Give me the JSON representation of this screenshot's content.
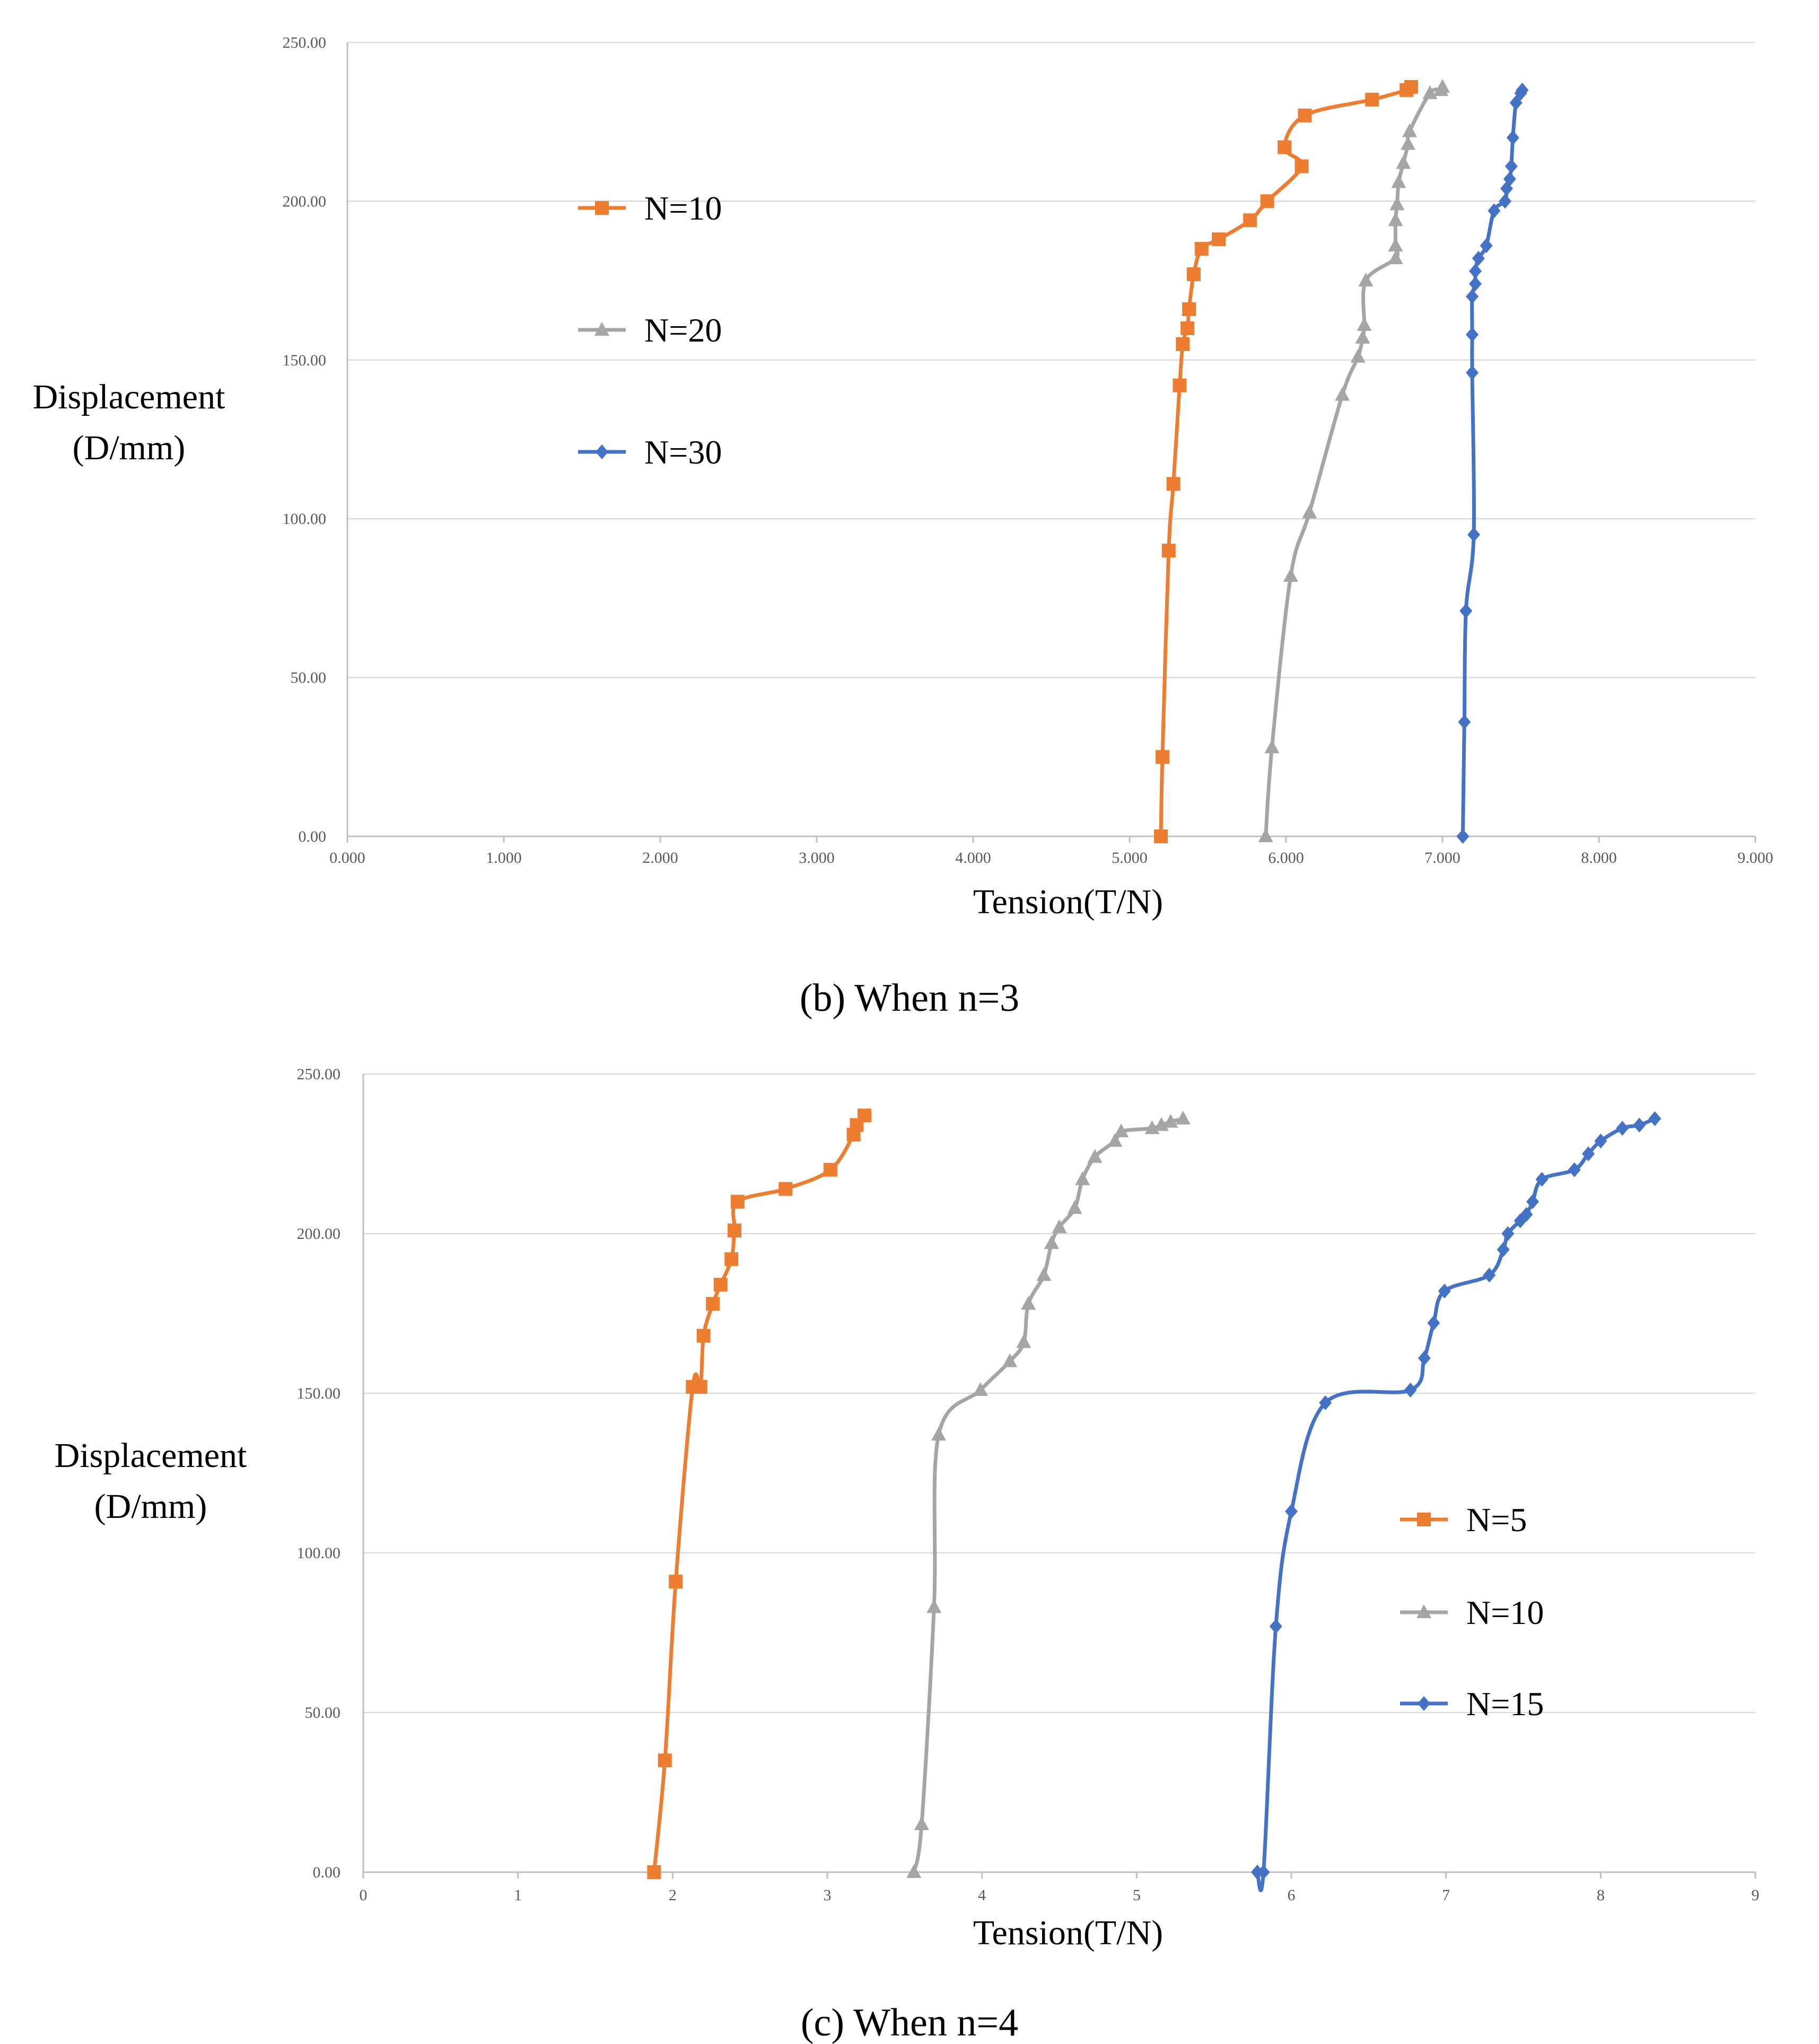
{
  "chart_data": [
    {
      "type": "line",
      "caption": "(b) When n=3",
      "xlabel": "Tension(T/N)",
      "ylabel_lines": [
        "Displacement",
        "(D/mm)"
      ],
      "xlim": [
        0,
        9
      ],
      "ylim": [
        0,
        250
      ],
      "x_ticks": [
        "0.000",
        "1.000",
        "2.000",
        "3.000",
        "4.000",
        "5.000",
        "6.000",
        "7.000",
        "8.000",
        "9.000"
      ],
      "y_ticks": [
        "0.00",
        "50.00",
        "100.00",
        "150.00",
        "200.00",
        "250.00"
      ],
      "grid": "horizontal",
      "legend_position": "top-left",
      "series": [
        {
          "name": "N=10",
          "color": "#ED7D31",
          "marker": "square",
          "points": [
            [
              5.2,
              0
            ],
            [
              5.21,
              25
            ],
            [
              5.25,
              90
            ],
            [
              5.28,
              111
            ],
            [
              5.32,
              142
            ],
            [
              5.34,
              155
            ],
            [
              5.37,
              160
            ],
            [
              5.38,
              166
            ],
            [
              5.41,
              177
            ],
            [
              5.46,
              185
            ],
            [
              5.57,
              188
            ],
            [
              5.77,
              194
            ],
            [
              5.88,
              200
            ],
            [
              6.1,
              211
            ],
            [
              5.99,
              217
            ],
            [
              6.12,
              227
            ],
            [
              6.55,
              232
            ],
            [
              6.77,
              235
            ],
            [
              6.8,
              236
            ]
          ]
        },
        {
          "name": "N=20",
          "color": "#A5A5A5",
          "marker": "triangle",
          "points": [
            [
              5.87,
              0
            ],
            [
              5.91,
              28
            ],
            [
              6.03,
              82
            ],
            [
              6.15,
              102
            ],
            [
              6.36,
              139
            ],
            [
              6.46,
              151
            ],
            [
              6.49,
              157
            ],
            [
              6.5,
              161
            ],
            [
              6.51,
              175
            ],
            [
              6.7,
              182
            ],
            [
              6.7,
              186
            ],
            [
              6.7,
              194
            ],
            [
              6.71,
              199
            ],
            [
              6.72,
              206
            ],
            [
              6.75,
              212
            ],
            [
              6.78,
              218
            ],
            [
              6.79,
              222
            ],
            [
              6.92,
              234
            ],
            [
              6.99,
              235
            ],
            [
              7.0,
              236
            ]
          ]
        },
        {
          "name": "N=30",
          "color": "#4472C4",
          "marker": "diamond",
          "points": [
            [
              7.13,
              0
            ],
            [
              7.14,
              36
            ],
            [
              7.15,
              71
            ],
            [
              7.2,
              95
            ],
            [
              7.19,
              146
            ],
            [
              7.19,
              158
            ],
            [
              7.19,
              170
            ],
            [
              7.21,
              174
            ],
            [
              7.21,
              178
            ],
            [
              7.23,
              182
            ],
            [
              7.28,
              186
            ],
            [
              7.33,
              197
            ],
            [
              7.4,
              200
            ],
            [
              7.41,
              204
            ],
            [
              7.43,
              207
            ],
            [
              7.44,
              211
            ],
            [
              7.45,
              220
            ],
            [
              7.47,
              231
            ],
            [
              7.5,
              234
            ],
            [
              7.51,
              235
            ]
          ]
        }
      ]
    },
    {
      "type": "line",
      "caption": "(c) When n=4",
      "xlabel": "Tension(T/N)",
      "ylabel_lines": [
        "Displacement",
        "(D/mm)"
      ],
      "xlim": [
        0,
        9
      ],
      "ylim": [
        0,
        250
      ],
      "x_ticks": [
        "0",
        "1",
        "2",
        "3",
        "4",
        "5",
        "6",
        "7",
        "8",
        "9"
      ],
      "y_ticks": [
        "0.00",
        "50.00",
        "100.00",
        "150.00",
        "200.00",
        "250.00"
      ],
      "grid": "horizontal",
      "legend_position": "bottom-right",
      "series": [
        {
          "name": "N=5",
          "color": "#ED7D31",
          "marker": "square",
          "points": [
            [
              1.88,
              0
            ],
            [
              1.95,
              35
            ],
            [
              2.02,
              91
            ],
            [
              2.13,
              152
            ],
            [
              2.18,
              152
            ],
            [
              2.2,
              168
            ],
            [
              2.26,
              178
            ],
            [
              2.31,
              184
            ],
            [
              2.38,
              192
            ],
            [
              2.4,
              201
            ],
            [
              2.42,
              210
            ],
            [
              2.73,
              214
            ],
            [
              3.02,
              220
            ],
            [
              3.17,
              231
            ],
            [
              3.19,
              234
            ],
            [
              3.24,
              237
            ]
          ]
        },
        {
          "name": "N=10",
          "color": "#A5A5A5",
          "marker": "triangle",
          "points": [
            [
              3.56,
              0
            ],
            [
              3.61,
              15
            ],
            [
              3.69,
              83
            ],
            [
              3.72,
              137
            ],
            [
              3.99,
              151
            ],
            [
              4.18,
              160
            ],
            [
              4.27,
              166
            ],
            [
              4.3,
              178
            ],
            [
              4.4,
              187
            ],
            [
              4.45,
              197
            ],
            [
              4.5,
              202
            ],
            [
              4.6,
              208
            ],
            [
              4.65,
              217
            ],
            [
              4.73,
              224
            ],
            [
              4.86,
              229
            ],
            [
              4.9,
              232
            ],
            [
              5.1,
              233
            ],
            [
              5.16,
              234
            ],
            [
              5.22,
              235
            ],
            [
              5.3,
              236
            ]
          ]
        },
        {
          "name": "N=15",
          "color": "#4472C4",
          "marker": "diamond",
          "points": [
            [
              5.78,
              0
            ],
            [
              5.82,
              0
            ],
            [
              5.9,
              77
            ],
            [
              6.0,
              113
            ],
            [
              6.22,
              147
            ],
            [
              6.77,
              151
            ],
            [
              6.86,
              161
            ],
            [
              6.92,
              172
            ],
            [
              6.99,
              182
            ],
            [
              7.28,
              187
            ],
            [
              7.37,
              195
            ],
            [
              7.4,
              200
            ],
            [
              7.48,
              204
            ],
            [
              7.52,
              206
            ],
            [
              7.56,
              210
            ],
            [
              7.62,
              217
            ],
            [
              7.83,
              220
            ],
            [
              7.92,
              225
            ],
            [
              8.0,
              229
            ],
            [
              8.14,
              233
            ],
            [
              8.25,
              234
            ],
            [
              8.35,
              236
            ]
          ]
        }
      ]
    }
  ]
}
